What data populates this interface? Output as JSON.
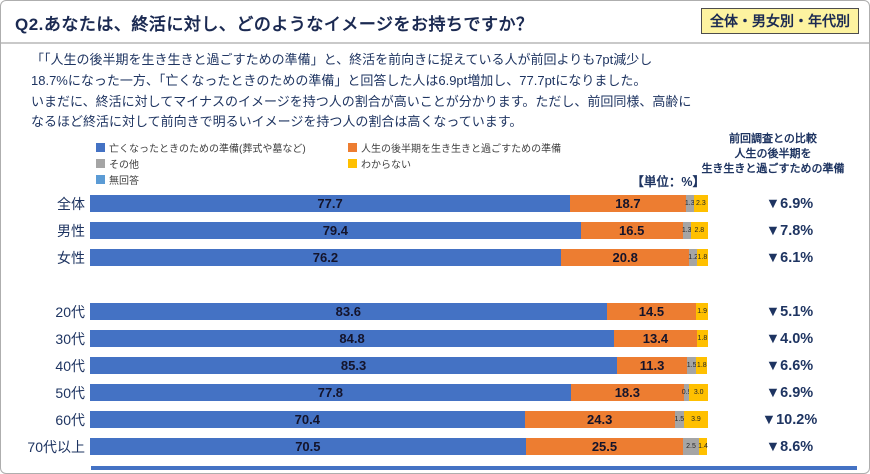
{
  "header": {
    "title": "Q2.あなたは、終活に対し、どのようなイメージをお持ちですか？",
    "badge": "全体・男女別・年代別"
  },
  "description": "「「人生の後半期を生き生きと過ごすための準備」と、終活を前向きに捉えている人が前回よりも7pt減少し\n18.7%になった一方、「亡くなったときのための準備」と回答した人は6.9pt増加し、77.7ptになりました。\nいまだに、終活に対してマイナスのイメージを持つ人の割合が高いことが分かります。ただし、前回同様、高齢に\nなるほど終活に対して前向きで明るいイメージを持つ人の割合は高くなっています。",
  "comparison_header": "前回調査との比較\n人生の後半期を\n生き生きと過ごすための準備",
  "unit_label": "【単位：%】",
  "chart_data": {
    "type": "bar",
    "orientation": "horizontal-stacked",
    "xlim": [
      0,
      100
    ],
    "series_names": [
      "亡くなったときのための準備(葬式や墓など)",
      "人生の後半期を生き生きと過ごすための準備",
      "その他",
      "わからない",
      "無回答"
    ],
    "colors": [
      "#4472C4",
      "#ED7D31",
      "#A5A5A5",
      "#FFC000",
      "#5B9BD5"
    ],
    "diff_column_title": "前回調査との比較 人生の後半期を生き生きと過ごすための準備",
    "categories": [
      "全体",
      "男性",
      "女性",
      "20代",
      "30代",
      "40代",
      "50代",
      "60代",
      "70代以上"
    ],
    "rows": [
      {
        "label": "全体",
        "values": [
          "77.7",
          "18.7",
          "1.3",
          "2.3"
        ],
        "diff": "▼6.9%"
      },
      {
        "label": "男性",
        "values": [
          "79.4",
          "16.5",
          "1.3",
          "2.8"
        ],
        "diff": "▼7.8%"
      },
      {
        "label": "女性",
        "values": [
          "76.2",
          "20.8",
          "1.2",
          "1.8"
        ],
        "diff": "▼6.1%"
      },
      {
        "label": "20代",
        "values": [
          "83.6",
          "14.5",
          null,
          "1.9"
        ],
        "diff": "▼5.1%",
        "gap": true
      },
      {
        "label": "30代",
        "values": [
          "84.8",
          "13.4",
          null,
          "1.8"
        ],
        "diff": "▼4.0%"
      },
      {
        "label": "40代",
        "values": [
          "85.3",
          "11.3",
          "1.5",
          "1.8"
        ],
        "diff": "▼6.6%"
      },
      {
        "label": "50代",
        "values": [
          "77.8",
          "18.3",
          "0.9",
          "3.0"
        ],
        "diff": "▼6.9%"
      },
      {
        "label": "60代",
        "values": [
          "70.4",
          "24.3",
          "1.5",
          "3.9"
        ],
        "diff": "▼10.2%"
      },
      {
        "label": "70代以上",
        "values": [
          "70.5",
          "25.5",
          "2.5",
          "1.4"
        ],
        "diff": "▼8.6%"
      }
    ]
  }
}
